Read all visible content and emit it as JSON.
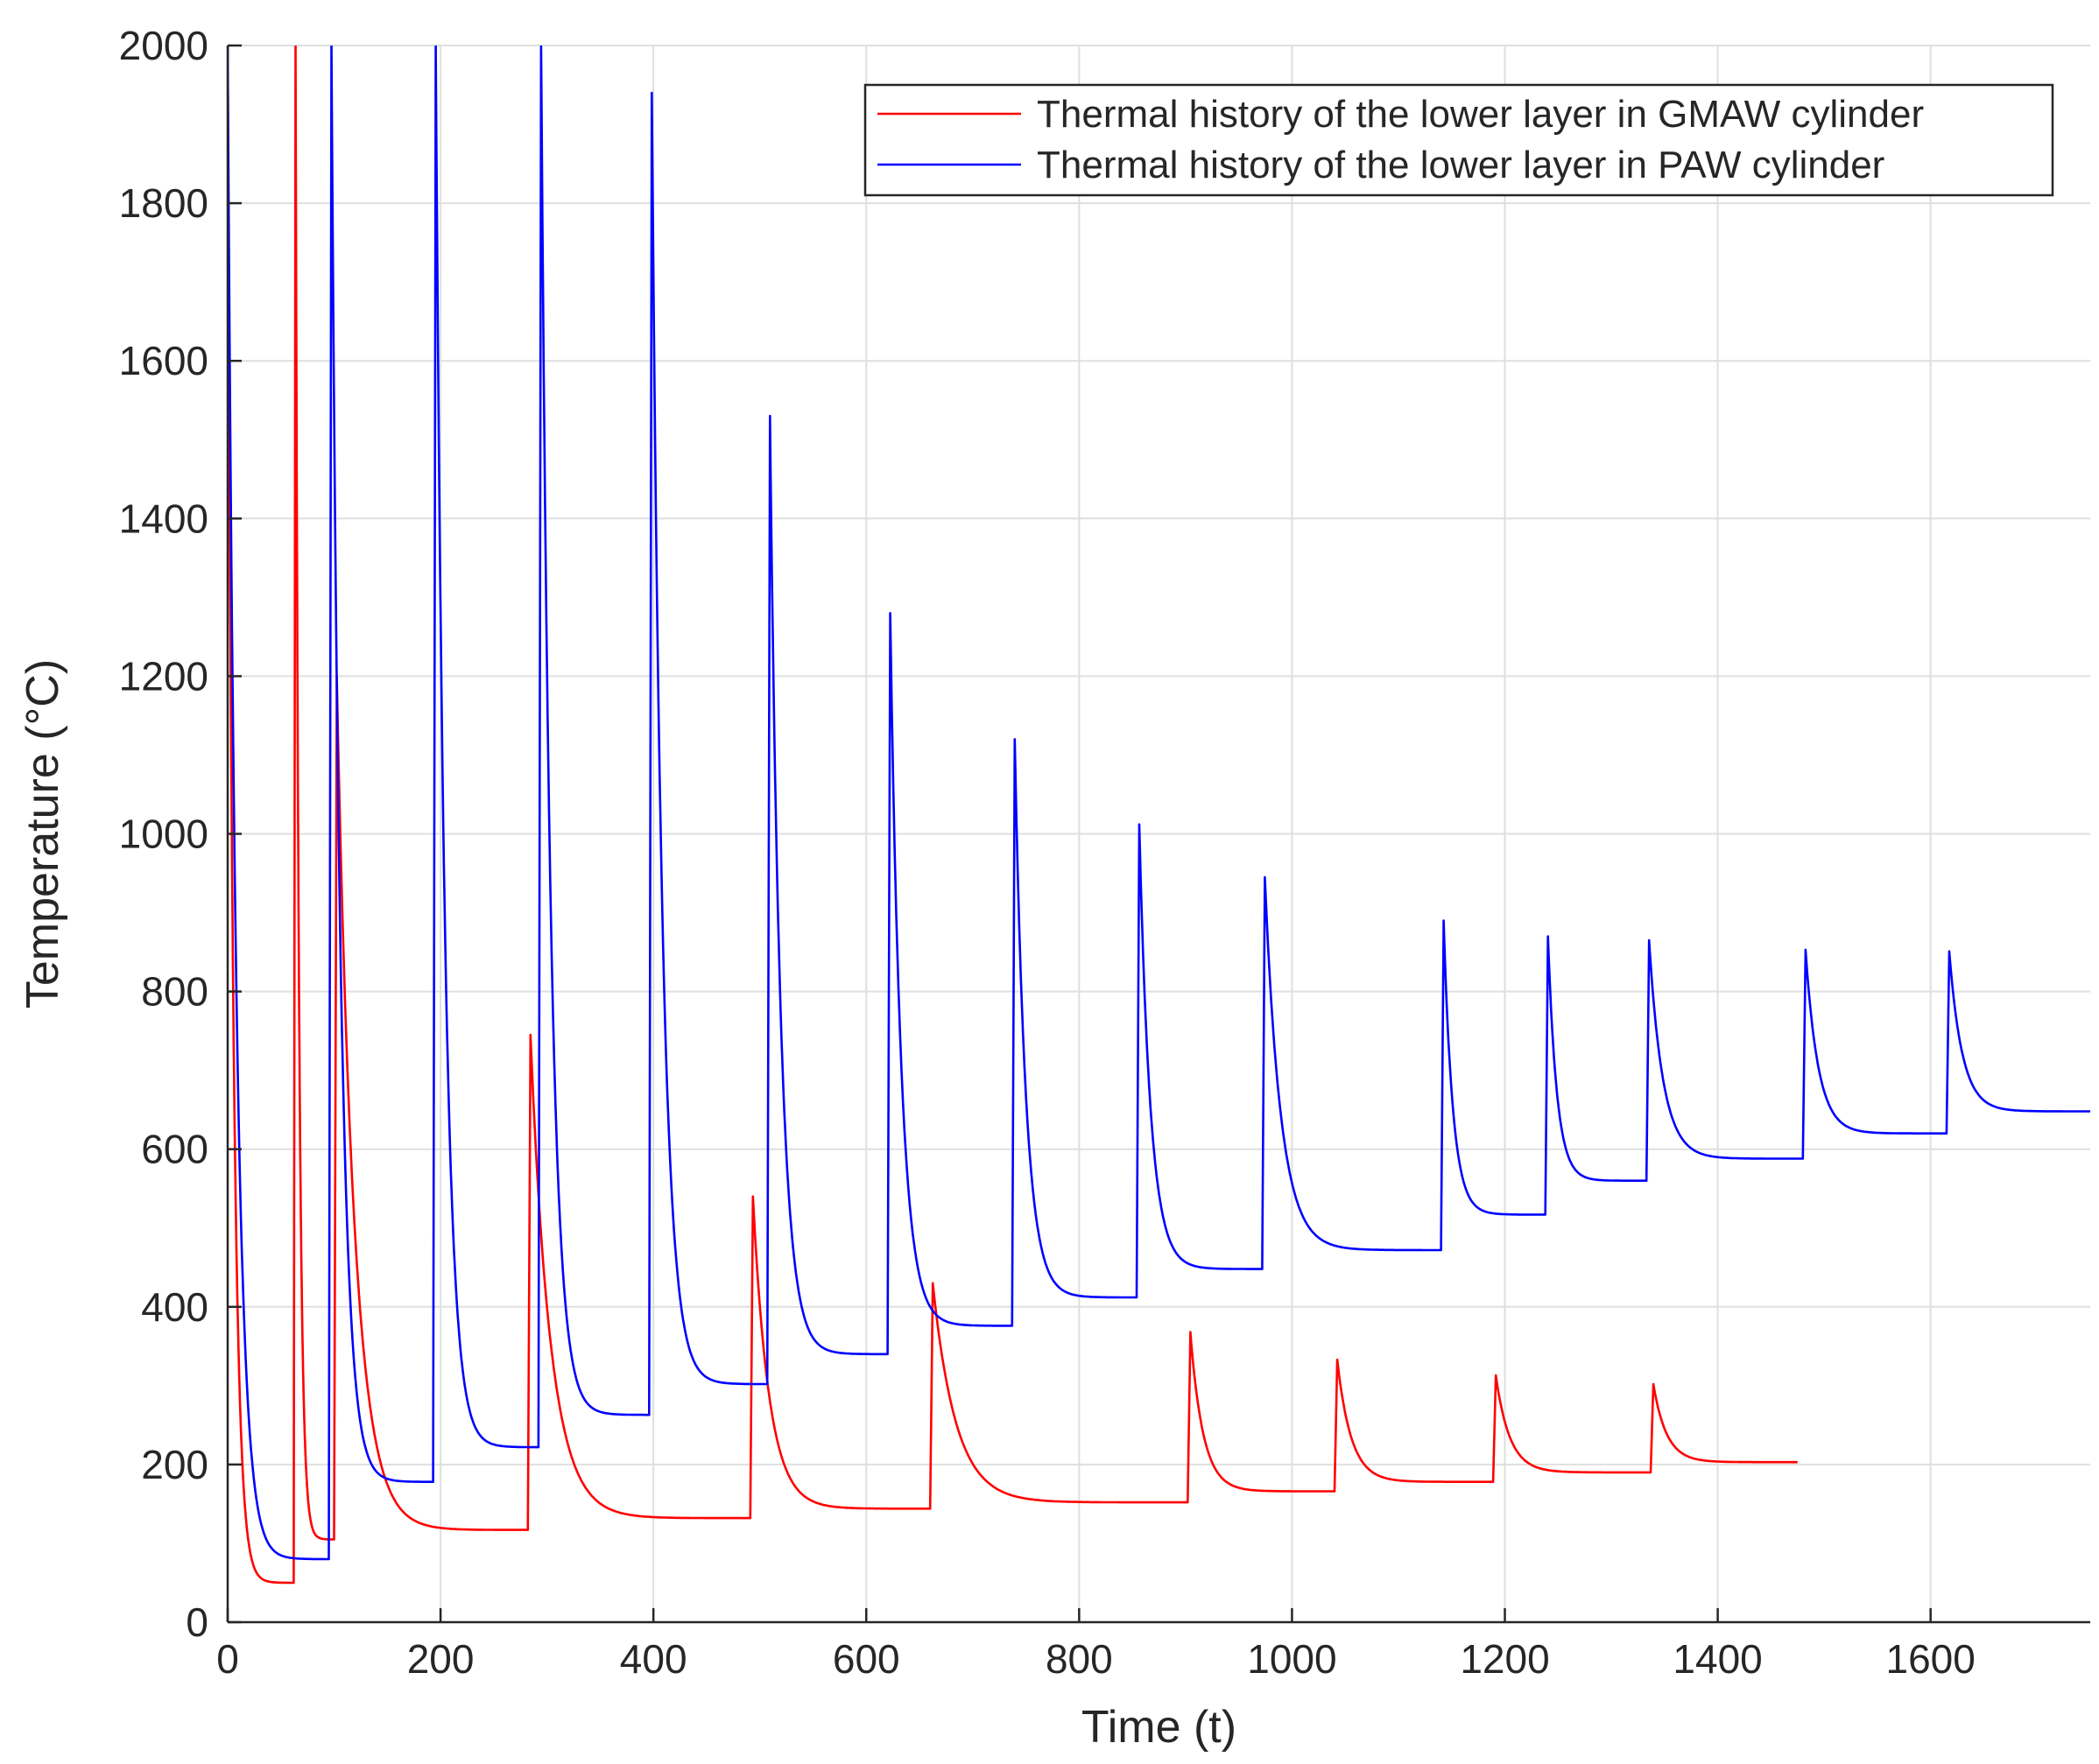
{
  "chart_data": {
    "type": "line",
    "title": "",
    "xlabel": "Time (t)",
    "ylabel": "Temperature  (°C)",
    "xlim": [
      0,
      1750
    ],
    "ylim": [
      0,
      2000
    ],
    "xticks": [
      0,
      200,
      400,
      600,
      800,
      1000,
      1200,
      1400,
      1600
    ],
    "yticks": [
      0,
      200,
      400,
      600,
      800,
      1000,
      1200,
      1400,
      1600,
      1800,
      2000
    ],
    "grid": true,
    "legend_position": "top-right",
    "series": [
      {
        "name": "Thermal history of the lower layer in GMAW cylinder",
        "color": "#ff0000",
        "segments": [
          {
            "t0": 0,
            "peak": 2000,
            "t_end": 60,
            "end": 50
          },
          {
            "t0": 62,
            "peak": 2000,
            "t_end": 98,
            "end": 105
          },
          {
            "t0": 100,
            "peak": 1200,
            "t_end": 280,
            "end": 117
          },
          {
            "t0": 282,
            "peak": 745,
            "t_end": 490,
            "end": 132
          },
          {
            "t0": 491,
            "peak": 540,
            "t_end": 658,
            "end": 144
          },
          {
            "t0": 660,
            "peak": 430,
            "t_end": 900,
            "end": 152
          },
          {
            "t0": 902,
            "peak": 368,
            "t_end": 1035,
            "end": 166
          },
          {
            "t0": 1040,
            "peak": 333,
            "t_end": 1185,
            "end": 178
          },
          {
            "t0": 1189,
            "peak": 313,
            "t_end": 1334,
            "end": 190
          },
          {
            "t0": 1337,
            "peak": 302,
            "t_end": 1475,
            "end": 203
          }
        ]
      },
      {
        "name": "Thermal history of the lower layer in PAW cylinder",
        "color": "#0000ff",
        "segments": [
          {
            "t0": 0,
            "peak": 2000,
            "t_end": 93,
            "end": 80
          },
          {
            "t0": 95,
            "peak": 2000,
            "t_end": 190,
            "end": 178
          },
          {
            "t0": 193,
            "peak": 2000,
            "t_end": 290,
            "end": 222
          },
          {
            "t0": 292,
            "peak": 2000,
            "t_end": 393,
            "end": 263
          },
          {
            "t0": 396,
            "peak": 1940,
            "t_end": 505,
            "end": 302
          },
          {
            "t0": 507,
            "peak": 1530,
            "t_end": 618,
            "end": 340
          },
          {
            "t0": 620,
            "peak": 1280,
            "t_end": 735,
            "end": 376
          },
          {
            "t0": 737,
            "peak": 1120,
            "t_end": 852,
            "end": 412
          },
          {
            "t0": 854,
            "peak": 1012,
            "t_end": 970,
            "end": 448
          },
          {
            "t0": 972,
            "peak": 945,
            "t_end": 1137,
            "end": 472
          },
          {
            "t0": 1140,
            "peak": 890,
            "t_end": 1235,
            "end": 517
          },
          {
            "t0": 1238,
            "peak": 870,
            "t_end": 1330,
            "end": 560
          },
          {
            "t0": 1333,
            "peak": 865,
            "t_end": 1477,
            "end": 588
          },
          {
            "t0": 1480,
            "peak": 853,
            "t_end": 1612,
            "end": 620
          },
          {
            "t0": 1615,
            "peak": 851,
            "t_end": 1750,
            "end": 648
          }
        ]
      }
    ]
  }
}
